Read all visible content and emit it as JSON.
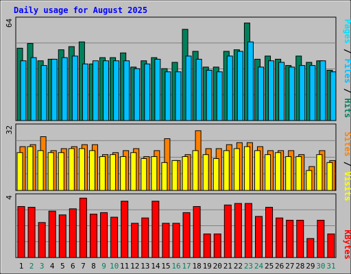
{
  "chart_data": [
    {
      "type": "bar",
      "title": "Daily usage for August 2025",
      "ylabel": "Pages / Files / Hits",
      "ylim": [
        0,
        64
      ],
      "y_tick_labels": [
        "64"
      ],
      "categories": [
        "1",
        "2",
        "3",
        "4",
        "5",
        "6",
        "7",
        "8",
        "9",
        "10",
        "11",
        "12",
        "13",
        "14",
        "15",
        "16",
        "17",
        "18",
        "19",
        "20",
        "21",
        "22",
        "23",
        "24",
        "25",
        "26",
        "27",
        "28",
        "29",
        "30",
        "31"
      ],
      "series": [
        {
          "name": "Hits",
          "color": "#00805c",
          "values": [
            46,
            49,
            38,
            39,
            45,
            47,
            50,
            36,
            40,
            40,
            43,
            34,
            38,
            40,
            33,
            37,
            58,
            44,
            34,
            34,
            44,
            45,
            62,
            39,
            41,
            39,
            35,
            41,
            37,
            38,
            32
          ]
        },
        {
          "name": "Files",
          "color": "#00c0ff",
          "values": [
            38,
            40,
            35,
            39,
            40,
            41,
            36,
            38,
            38,
            38,
            38,
            33,
            36,
            39,
            31,
            31,
            41,
            39,
            32,
            31,
            41,
            44,
            50,
            34,
            38,
            37,
            34,
            35,
            35,
            38,
            31
          ]
        },
        {
          "name": "Pages",
          "color": "#00e0ff",
          "values": [
            0,
            0,
            0,
            0,
            0,
            0,
            0,
            0,
            0,
            0,
            0,
            0,
            0,
            0,
            0,
            0,
            0,
            0,
            0,
            0,
            0,
            0,
            0,
            0,
            0,
            0,
            0,
            0,
            0,
            0,
            0
          ]
        }
      ]
    },
    {
      "type": "bar",
      "ylabel": "Sites / Visits",
      "ylim": [
        0,
        32
      ],
      "y_tick_labels": [
        "32"
      ],
      "categories": [
        "1",
        "2",
        "3",
        "4",
        "5",
        "6",
        "7",
        "8",
        "9",
        "10",
        "11",
        "12",
        "13",
        "14",
        "15",
        "16",
        "17",
        "18",
        "19",
        "20",
        "21",
        "22",
        "23",
        "24",
        "25",
        "26",
        "27",
        "28",
        "29",
        "30",
        "31"
      ],
      "series": [
        {
          "name": "Visits",
          "color": "#ff8000",
          "values": [
            22,
            23,
            27,
            20,
            21,
            22,
            23,
            23,
            18,
            19,
            20,
            21,
            17,
            20,
            26,
            15,
            18,
            30,
            21,
            21,
            23,
            24,
            24,
            22,
            20,
            20,
            20,
            18,
            12,
            20,
            15
          ]
        },
        {
          "name": "Sites",
          "color": "#ffff00",
          "values": [
            19,
            22,
            20,
            19,
            19,
            21,
            21,
            20,
            17,
            18,
            17,
            19,
            16,
            17,
            14,
            15,
            17,
            20,
            18,
            16,
            20,
            21,
            22,
            20,
            18,
            19,
            17,
            17,
            10,
            18,
            14
          ]
        }
      ]
    },
    {
      "type": "bar",
      "ylabel": "KBytes",
      "ylim": [
        0,
        4
      ],
      "y_tick_labels": [
        "4"
      ],
      "categories": [
        "1",
        "2",
        "3",
        "4",
        "5",
        "6",
        "7",
        "8",
        "9",
        "10",
        "11",
        "12",
        "13",
        "14",
        "15",
        "16",
        "17",
        "18",
        "19",
        "20",
        "21",
        "22",
        "23",
        "24",
        "25",
        "26",
        "27",
        "28",
        "29",
        "30",
        "31"
      ],
      "series": [
        {
          "name": "KBytes",
          "color": "#ff0000",
          "values": [
            3.35,
            3.3,
            2.3,
            3.05,
            2.8,
            3.2,
            3.9,
            2.85,
            2.95,
            2.65,
            3.7,
            2.25,
            2.6,
            3.7,
            2.25,
            2.25,
            2.95,
            3.35,
            1.55,
            1.55,
            3.45,
            3.55,
            3.55,
            2.7,
            3.3,
            2.6,
            2.45,
            2.45,
            1.25,
            2.45,
            1.55
          ]
        }
      ]
    }
  ],
  "x_label_colors": {
    "weekday": "#000000",
    "weekend": "#00805c"
  },
  "weekend_days": [
    "2",
    "3",
    "9",
    "10",
    "16",
    "17",
    "23",
    "24",
    "30",
    "31"
  ],
  "colors": {
    "background": "#c0c0c0",
    "title": "#0000ff",
    "gridline": "#808080",
    "border_dark": "#000000",
    "border_light": "#ffffff"
  }
}
